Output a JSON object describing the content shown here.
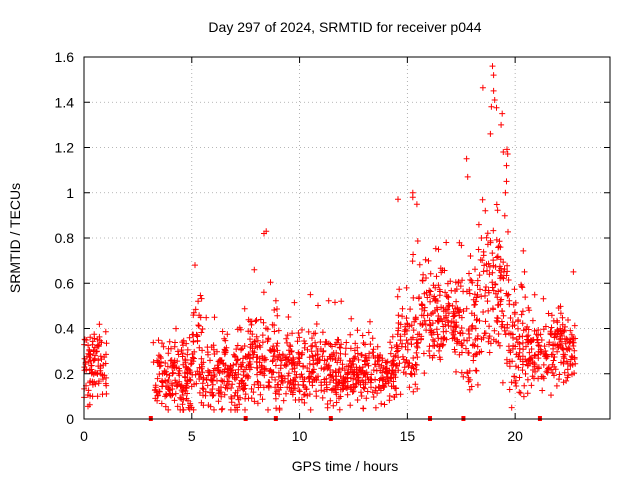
{
  "chart_data": {
    "type": "scatter",
    "title": "Day 297 of 2024, SRMTID for receiver p044",
    "xlabel": "GPS time / hours",
    "ylabel": "SRMTID / TECUs",
    "xlim": [
      0,
      24.4
    ],
    "ylim": [
      0,
      1.6
    ],
    "x_ticks": [
      0,
      5,
      10,
      15,
      20
    ],
    "y_ticks": [
      0,
      0.2,
      0.4,
      0.6,
      0.8,
      1,
      1.2,
      1.4,
      1.6
    ],
    "x_tick_labels": [
      "0",
      "5",
      "10",
      "15",
      "20"
    ],
    "y_tick_labels": [
      "0",
      "0.2",
      "0.4",
      "0.6",
      "0.8",
      "1",
      "1.2",
      "1.4",
      "1.6"
    ],
    "grid": true,
    "marker": "+",
    "color": "#ff0000",
    "segments": [
      {
        "x_start": 0.0,
        "x_end": 1.05,
        "base": 0.22,
        "spread": 0.12,
        "peak": 0.5
      },
      {
        "x_start": 3.2,
        "x_end": 5.0,
        "base": 0.18,
        "spread": 0.12,
        "peak": 0.42
      },
      {
        "x_start": 5.0,
        "x_end": 5.5,
        "base": 0.3,
        "spread": 0.2,
        "peak": 0.68
      },
      {
        "x_start": 5.5,
        "x_end": 7.5,
        "base": 0.18,
        "spread": 0.12,
        "peak": 0.5
      },
      {
        "x_start": 7.5,
        "x_end": 9.0,
        "base": 0.25,
        "spread": 0.15,
        "peak": 0.66
      },
      {
        "x_start": 9.0,
        "x_end": 12.0,
        "base": 0.2,
        "spread": 0.12,
        "peak": 0.55
      },
      {
        "x_start": 12.0,
        "x_end": 14.5,
        "base": 0.2,
        "spread": 0.1,
        "peak": 0.45
      },
      {
        "x_start": 14.5,
        "x_end": 15.5,
        "base": 0.32,
        "spread": 0.15,
        "peak": 1.0
      },
      {
        "x_start": 15.5,
        "x_end": 17.5,
        "base": 0.45,
        "spread": 0.17,
        "peak": 0.78
      },
      {
        "x_start": 17.5,
        "x_end": 18.3,
        "base": 0.42,
        "spread": 0.2,
        "peak": 1.15
      },
      {
        "x_start": 18.3,
        "x_end": 19.7,
        "base": 0.55,
        "spread": 0.25,
        "peak": 1.56
      },
      {
        "x_start": 19.7,
        "x_end": 20.5,
        "base": 0.35,
        "spread": 0.18,
        "peak": 0.86
      },
      {
        "x_start": 20.5,
        "x_end": 22.8,
        "base": 0.3,
        "spread": 0.12,
        "peak": 0.65
      }
    ],
    "outliers": [
      {
        "x": 8.45,
        "y": 0.83
      },
      {
        "x": 8.35,
        "y": 0.82
      },
      {
        "x": 15.25,
        "y": 1.0
      },
      {
        "x": 15.25,
        "y": 0.98
      },
      {
        "x": 17.75,
        "y": 1.15
      },
      {
        "x": 17.8,
        "y": 1.07
      },
      {
        "x": 18.95,
        "y": 1.56
      },
      {
        "x": 19.0,
        "y": 1.52
      },
      {
        "x": 19.0,
        "y": 1.45
      },
      {
        "x": 19.05,
        "y": 1.41
      },
      {
        "x": 18.9,
        "y": 1.38
      },
      {
        "x": 19.4,
        "y": 1.35
      },
      {
        "x": 19.35,
        "y": 1.3
      },
      {
        "x": 18.85,
        "y": 1.26
      },
      {
        "x": 19.45,
        "y": 1.18
      },
      {
        "x": 19.6,
        "y": 1.12
      },
      {
        "x": 19.6,
        "y": 1.05
      },
      {
        "x": 19.55,
        "y": 1.0
      },
      {
        "x": 5.15,
        "y": 0.68
      },
      {
        "x": 7.9,
        "y": 0.66
      },
      {
        "x": 10.5,
        "y": 0.55
      },
      {
        "x": 11.3,
        "y": 0.05
      },
      {
        "x": 16.8,
        "y": 0.78
      },
      {
        "x": 22.7,
        "y": 0.65
      }
    ],
    "data_gap_markers_x": [
      3.1,
      7.5,
      8.9,
      11.45,
      16.05,
      17.6,
      21.15
    ]
  }
}
